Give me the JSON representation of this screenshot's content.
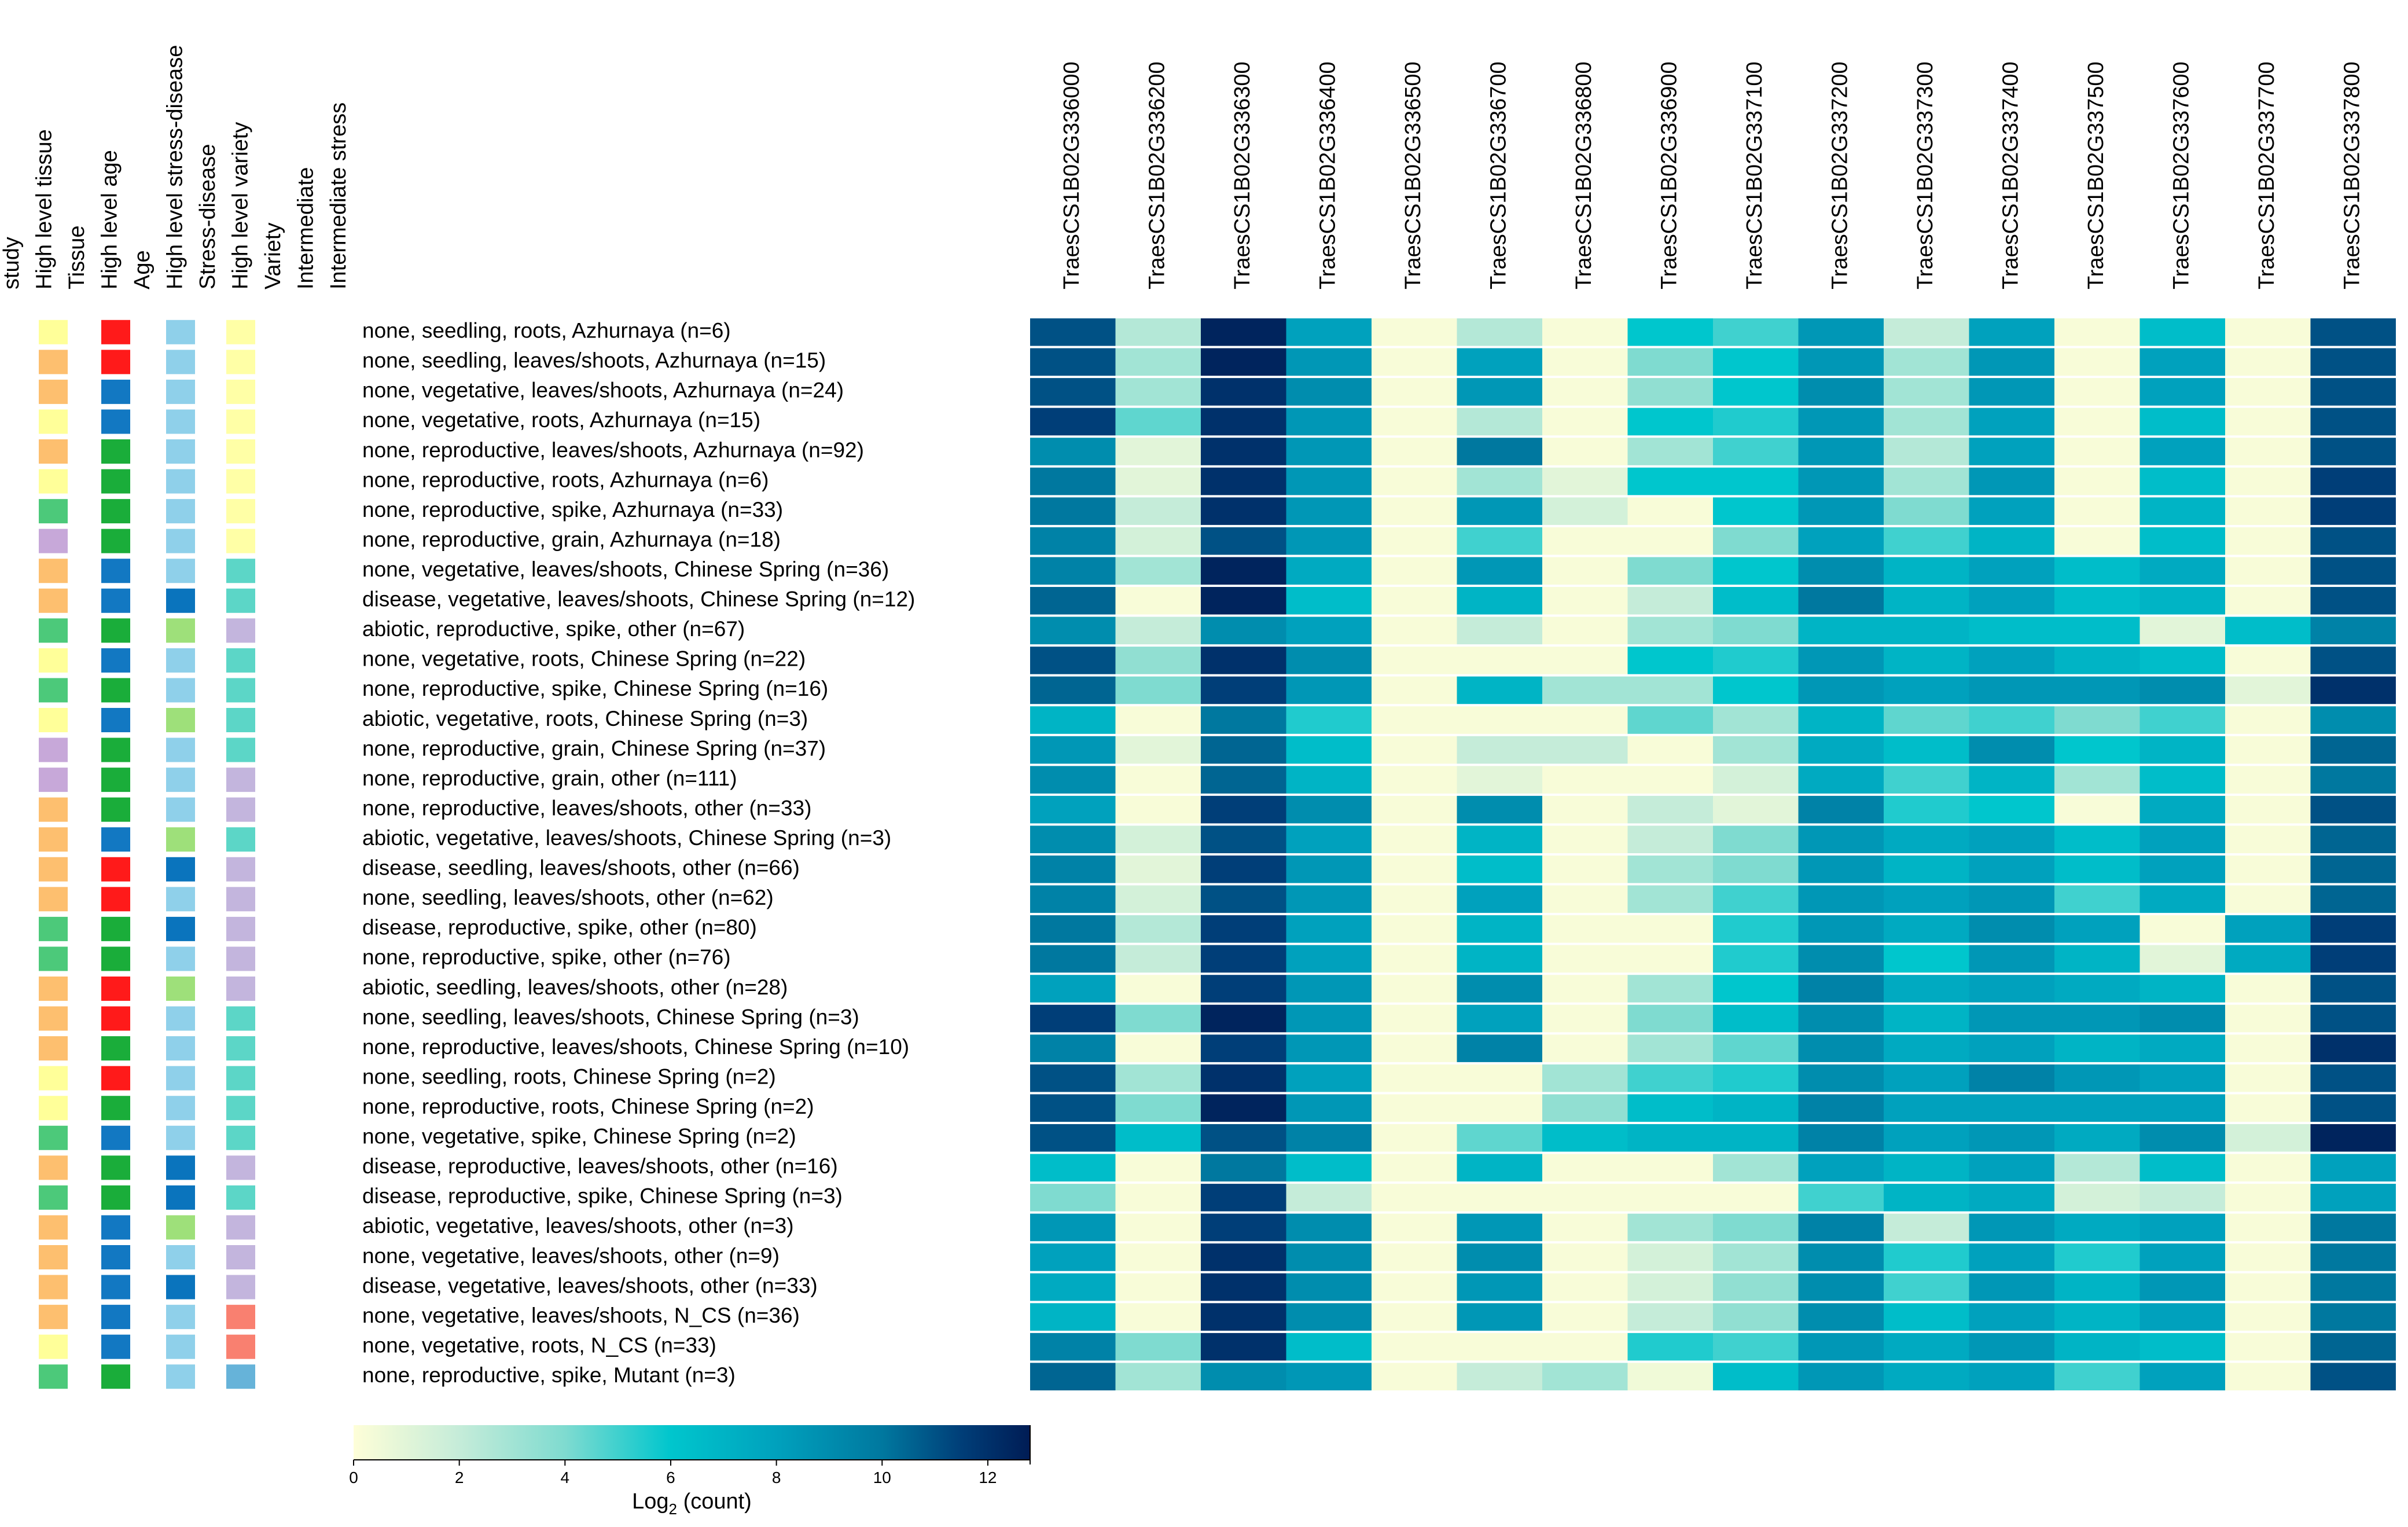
{
  "chart_data": {
    "type": "heatmap",
    "title": "",
    "annotation_headers": [
      "study",
      "High level tissue",
      "Tissue",
      "High level age",
      "Age",
      "High level stress-disease",
      "Stress-disease",
      "High level variety",
      "Variety",
      "Intermediate",
      "Intermediate stress"
    ],
    "annotation_columns": [
      "High level tissue",
      "High level age",
      "High level stress-disease",
      "High level variety"
    ],
    "annotation_palettes": {
      "High level tissue": {
        "roots": "#ffff99",
        "leaves/shoots": "#fdbf6f",
        "spike": "#4cc97a",
        "grain": "#c7a8d9"
      },
      "High level age": {
        "seedling": "#ff1a1a",
        "vegetative": "#1278c2",
        "reproductive": "#1aad3a"
      },
      "High level stress-disease": {
        "none": "#8fd0ea",
        "disease": "#0a74bd",
        "abiotic": "#9ee07a"
      },
      "High level variety": {
        "Azhurnaya": "#ffffa6",
        "Chinese Spring": "#5cd6c7",
        "other": "#c3b5dd",
        "N_CS": "#f98070",
        "Mutant": "#66b3d9"
      }
    },
    "genes": [
      "TraesCS1B02G336000",
      "TraesCS1B02G336200",
      "TraesCS1B02G336300",
      "TraesCS1B02G336400",
      "TraesCS1B02G336500",
      "TraesCS1B02G336700",
      "TraesCS1B02G336800",
      "TraesCS1B02G336900",
      "TraesCS1B02G337100",
      "TraesCS1B02G337200",
      "TraesCS1B02G337300",
      "TraesCS1B02G337400",
      "TraesCS1B02G337500",
      "TraesCS1B02G337600",
      "TraesCS1B02G337700",
      "TraesCS1B02G337800"
    ],
    "rows": [
      {
        "label": "none, seedling, roots, Azhurnaya (n=6)",
        "tissue": "roots",
        "age": "seedling",
        "stress": "none",
        "variety": "Azhurnaya",
        "values": [
          11,
          2.5,
          12.5,
          8,
          0.2,
          2.5,
          0.2,
          6,
          5,
          8.5,
          2,
          8,
          0.2,
          6.5,
          0.2,
          11
        ]
      },
      {
        "label": "none, seedling, leaves/shoots, Azhurnaya (n=15)",
        "tissue": "leaves/shoots",
        "age": "seedling",
        "stress": "none",
        "variety": "Azhurnaya",
        "values": [
          11,
          3,
          12.5,
          8.5,
          0.2,
          8,
          0.2,
          4,
          6,
          8.5,
          3,
          8.5,
          0.2,
          8,
          0.2,
          11
        ]
      },
      {
        "label": "none, vegetative, leaves/shoots, Azhurnaya (n=24)",
        "tissue": "leaves/shoots",
        "age": "vegetative",
        "stress": "none",
        "variety": "Azhurnaya",
        "values": [
          11,
          3,
          12,
          9,
          0.2,
          8.5,
          0.2,
          3.5,
          6,
          9,
          3,
          8.5,
          0.2,
          8,
          0.2,
          11
        ]
      },
      {
        "label": "none, vegetative, roots, Azhurnaya (n=15)",
        "tissue": "roots",
        "age": "vegetative",
        "stress": "none",
        "variety": "Azhurnaya",
        "values": [
          11.5,
          4.5,
          12,
          8.5,
          0.2,
          2.5,
          0.2,
          6,
          5.5,
          8.5,
          3,
          8,
          0.2,
          6.5,
          0.2,
          11
        ]
      },
      {
        "label": "none, reproductive, leaves/shoots, Azhurnaya (n=92)",
        "tissue": "leaves/shoots",
        "age": "reproductive",
        "stress": "none",
        "variety": "Azhurnaya",
        "values": [
          9,
          1,
          12,
          8.5,
          0.2,
          10,
          0.2,
          3,
          5,
          8.5,
          2.5,
          8,
          0.2,
          8,
          0.2,
          11
        ]
      },
      {
        "label": "none, reproductive, roots, Azhurnaya (n=6)",
        "tissue": "roots",
        "age": "reproductive",
        "stress": "none",
        "variety": "Azhurnaya",
        "values": [
          10,
          1,
          12,
          8.5,
          0.2,
          3,
          1,
          6,
          6,
          8.5,
          3,
          8.5,
          0.2,
          6.5,
          0.2,
          11.5
        ]
      },
      {
        "label": "none, reproductive, spike, Azhurnaya (n=33)",
        "tissue": "spike",
        "age": "reproductive",
        "stress": "none",
        "variety": "Azhurnaya",
        "values": [
          10,
          2,
          12,
          8.5,
          0.2,
          8.5,
          1.5,
          0.2,
          6,
          8.5,
          4,
          8,
          0.2,
          7,
          0.2,
          11.5
        ]
      },
      {
        "label": "none, reproductive, grain, Azhurnaya (n=18)",
        "tissue": "grain",
        "age": "reproductive",
        "stress": "none",
        "variety": "Azhurnaya",
        "values": [
          9.5,
          1.5,
          11,
          8.5,
          0.2,
          5,
          0.2,
          0.2,
          4,
          8,
          5,
          7,
          0.2,
          6.5,
          0.2,
          11
        ]
      },
      {
        "label": "none, vegetative, leaves/shoots, Chinese Spring (n=36)",
        "tissue": "leaves/shoots",
        "age": "vegetative",
        "stress": "none",
        "variety": "Chinese Spring",
        "values": [
          9.5,
          3,
          12.5,
          7.5,
          0.2,
          8.5,
          0.2,
          4,
          6,
          9,
          7,
          8,
          6.5,
          7.5,
          0.2,
          11
        ]
      },
      {
        "label": "disease, vegetative, leaves/shoots, Chinese Spring (n=12)",
        "tissue": "leaves/shoots",
        "age": "vegetative",
        "stress": "disease",
        "variety": "Chinese Spring",
        "values": [
          10.5,
          0.2,
          12.5,
          6.5,
          0.2,
          7,
          0.2,
          2,
          6.5,
          10,
          7,
          8,
          6.5,
          7,
          0.2,
          11
        ]
      },
      {
        "label": "abiotic, reproductive, spike, other (n=67)",
        "tissue": "spike",
        "age": "reproductive",
        "stress": "abiotic",
        "variety": "other",
        "values": [
          9,
          2,
          9,
          8,
          0.2,
          2,
          0.2,
          3,
          4,
          7,
          7,
          6.5,
          6.5,
          1,
          6.5,
          9.5
        ]
      },
      {
        "label": "none, vegetative, roots, Chinese Spring (n=22)",
        "tissue": "roots",
        "age": "vegetative",
        "stress": "none",
        "variety": "Chinese Spring",
        "values": [
          11,
          3.5,
          12,
          9,
          0.2,
          0.2,
          0.2,
          6,
          5.5,
          8.5,
          7,
          8,
          7,
          6.5,
          0.2,
          11
        ]
      },
      {
        "label": "none, reproductive, spike, Chinese Spring (n=16)",
        "tissue": "spike",
        "age": "reproductive",
        "stress": "none",
        "variety": "Chinese Spring",
        "values": [
          10.5,
          4,
          11.5,
          8.5,
          0.2,
          7,
          3,
          3,
          6,
          8.5,
          8,
          8.5,
          8.5,
          9,
          1,
          12
        ]
      },
      {
        "label": "abiotic, vegetative, roots, Chinese Spring (n=3)",
        "tissue": "roots",
        "age": "vegetative",
        "stress": "abiotic",
        "variety": "Chinese Spring",
        "values": [
          7,
          0.2,
          10,
          5.5,
          0.2,
          0.2,
          0.2,
          4.5,
          3,
          7,
          4.5,
          5,
          4,
          5,
          0.2,
          9
        ]
      },
      {
        "label": "none, reproductive, grain, Chinese Spring (n=37)",
        "tissue": "grain",
        "age": "reproductive",
        "stress": "none",
        "variety": "Chinese Spring",
        "values": [
          8.5,
          1,
          10.5,
          6.5,
          0.2,
          2,
          2,
          0.2,
          3,
          7.5,
          6.5,
          9,
          6,
          7,
          0.2,
          10.5
        ]
      },
      {
        "label": "none, reproductive, grain, other (n=111)",
        "tissue": "grain",
        "age": "reproductive",
        "stress": "none",
        "variety": "other",
        "values": [
          9,
          0.2,
          10.5,
          7,
          0.2,
          1,
          0.2,
          0.2,
          1.5,
          7.5,
          5,
          7,
          3,
          6.5,
          0.2,
          10
        ]
      },
      {
        "label": "none, reproductive, leaves/shoots, other (n=33)",
        "tissue": "leaves/shoots",
        "age": "reproductive",
        "stress": "none",
        "variety": "other",
        "values": [
          8,
          0.2,
          11.5,
          9,
          0.2,
          9,
          0.2,
          2,
          1,
          9.5,
          5.5,
          6,
          0.2,
          7.5,
          0.2,
          11
        ]
      },
      {
        "label": "abiotic, vegetative, leaves/shoots, Chinese Spring (n=3)",
        "tissue": "leaves/shoots",
        "age": "vegetative",
        "stress": "abiotic",
        "variety": "Chinese Spring",
        "values": [
          9,
          1.5,
          11,
          8,
          0.2,
          7,
          0.2,
          2,
          4,
          8.5,
          7.5,
          8,
          6.5,
          8,
          0.2,
          10.5
        ]
      },
      {
        "label": "disease, seedling, leaves/shoots, other (n=66)",
        "tissue": "leaves/shoots",
        "age": "seedling",
        "stress": "disease",
        "variety": "other",
        "values": [
          9.5,
          1,
          11.5,
          8.5,
          0.2,
          6.5,
          0.2,
          3,
          4,
          8.5,
          7,
          8,
          6.5,
          8,
          0.2,
          10.5
        ]
      },
      {
        "label": "none, seedling, leaves/shoots, other (n=62)",
        "tissue": "leaves/shoots",
        "age": "seedling",
        "stress": "none",
        "variety": "other",
        "values": [
          9.5,
          1.5,
          11,
          8.5,
          0.2,
          8,
          0.2,
          3,
          5,
          8.5,
          8,
          8.5,
          5,
          7.5,
          0.2,
          10.5
        ]
      },
      {
        "label": "disease, reproductive, spike, other (n=80)",
        "tissue": "spike",
        "age": "reproductive",
        "stress": "disease",
        "variety": "other",
        "values": [
          10,
          2.5,
          11.5,
          8,
          0.2,
          7,
          0.2,
          0.2,
          5.5,
          8.5,
          7.5,
          9,
          8,
          0.2,
          8,
          11.5
        ]
      },
      {
        "label": "none, reproductive, spike, other (n=76)",
        "tissue": "spike",
        "age": "reproductive",
        "stress": "none",
        "variety": "other",
        "values": [
          10,
          2,
          11.5,
          8,
          0.2,
          7,
          0.2,
          0.2,
          5.5,
          9,
          6,
          8.5,
          7,
          1,
          7.5,
          11.5
        ]
      },
      {
        "label": "abiotic, seedling, leaves/shoots, other (n=28)",
        "tissue": "leaves/shoots",
        "age": "seedling",
        "stress": "abiotic",
        "variety": "other",
        "values": [
          8,
          0.2,
          11.5,
          8.5,
          0.2,
          9,
          0.2,
          3,
          6,
          9.5,
          7.5,
          8,
          7.5,
          7,
          0.2,
          11
        ]
      },
      {
        "label": "none, seedling, leaves/shoots, Chinese Spring (n=3)",
        "tissue": "leaves/shoots",
        "age": "seedling",
        "stress": "none",
        "variety": "Chinese Spring",
        "values": [
          11.5,
          4,
          12.5,
          8.5,
          0.2,
          8,
          0.2,
          4,
          6.5,
          9,
          7,
          8.5,
          8.5,
          9,
          0.2,
          11
        ]
      },
      {
        "label": "none, reproductive, leaves/shoots, Chinese Spring (n=10)",
        "tissue": "leaves/shoots",
        "age": "reproductive",
        "stress": "none",
        "variety": "Chinese Spring",
        "values": [
          9.5,
          0.2,
          11.5,
          8.5,
          0.2,
          9.5,
          0.2,
          3,
          4.5,
          9,
          7.5,
          8,
          7,
          7.5,
          0.2,
          12
        ]
      },
      {
        "label": "none, seedling, roots, Chinese Spring (n=2)",
        "tissue": "roots",
        "age": "seedling",
        "stress": "none",
        "variety": "Chinese Spring",
        "values": [
          11,
          3,
          12,
          8,
          0.2,
          0.2,
          3,
          5,
          5.5,
          9,
          8,
          9.5,
          8.5,
          8,
          0.2,
          11
        ]
      },
      {
        "label": "none, reproductive, roots, Chinese Spring (n=2)",
        "tissue": "roots",
        "age": "reproductive",
        "stress": "none",
        "variety": "Chinese Spring",
        "values": [
          11,
          4,
          12.5,
          8.5,
          0.2,
          0.2,
          3.5,
          6.5,
          7,
          9.5,
          8,
          8,
          8,
          8,
          0.2,
          11
        ]
      },
      {
        "label": "none, vegetative, spike, Chinese Spring (n=2)",
        "tissue": "spike",
        "age": "vegetative",
        "stress": "none",
        "variety": "Chinese Spring",
        "values": [
          11,
          6.5,
          11,
          9.5,
          0.2,
          4.5,
          6.5,
          7,
          7,
          9.5,
          8,
          8.5,
          7.5,
          9,
          1.5,
          12.5
        ]
      },
      {
        "label": "disease, reproductive, leaves/shoots, other (n=16)",
        "tissue": "leaves/shoots",
        "age": "reproductive",
        "stress": "disease",
        "variety": "other",
        "values": [
          6.5,
          0.2,
          10,
          6.5,
          0.2,
          7,
          0.2,
          0.2,
          3,
          8,
          7,
          8,
          2.5,
          6.5,
          0.2,
          8
        ]
      },
      {
        "label": "disease, reproductive, spike, Chinese Spring (n=3)",
        "tissue": "spike",
        "age": "reproductive",
        "stress": "disease",
        "variety": "Chinese Spring",
        "values": [
          4,
          0.2,
          11.5,
          2,
          0.2,
          0.2,
          0.2,
          0.2,
          0.2,
          5,
          7,
          7.5,
          1.5,
          2,
          0.2,
          8
        ]
      },
      {
        "label": "abiotic, vegetative, leaves/shoots, other (n=3)",
        "tissue": "leaves/shoots",
        "age": "vegetative",
        "stress": "abiotic",
        "variety": "other",
        "values": [
          8.5,
          0.2,
          11.5,
          9,
          0.2,
          8.5,
          0.2,
          3,
          4,
          9.5,
          2,
          8.5,
          7.5,
          8,
          0.2,
          10
        ]
      },
      {
        "label": "none, vegetative, leaves/shoots, other (n=9)",
        "tissue": "leaves/shoots",
        "age": "vegetative",
        "stress": "none",
        "variety": "other",
        "values": [
          8,
          0.2,
          12,
          9,
          0.2,
          9,
          0.2,
          1.5,
          3,
          9,
          5.5,
          8,
          5.5,
          8,
          0.2,
          10
        ]
      },
      {
        "label": "disease, vegetative, leaves/shoots, other (n=33)",
        "tissue": "leaves/shoots",
        "age": "vegetative",
        "stress": "disease",
        "variety": "other",
        "values": [
          7.5,
          0.2,
          12,
          9,
          0.2,
          8.5,
          0.2,
          1.5,
          3.5,
          9,
          5,
          8.5,
          7,
          8.5,
          0.2,
          10
        ]
      },
      {
        "label": "none, vegetative, leaves/shoots, N_CS (n=36)",
        "tissue": "leaves/shoots",
        "age": "vegetative",
        "stress": "none",
        "variety": "N_CS",
        "values": [
          7,
          0.2,
          12,
          9,
          0.2,
          8.5,
          0.2,
          2,
          3.5,
          9,
          6.5,
          8,
          7,
          8,
          0.2,
          10
        ]
      },
      {
        "label": "none, vegetative, roots, N_CS (n=33)",
        "tissue": "roots",
        "age": "vegetative",
        "stress": "none",
        "variety": "N_CS",
        "values": [
          9.5,
          4,
          12,
          6.5,
          0.2,
          0.2,
          0.2,
          5.5,
          5,
          8.5,
          7.5,
          8.5,
          7,
          6.5,
          0.2,
          10.5
        ]
      },
      {
        "label": "none, reproductive, spike, Mutant (n=3)",
        "tissue": "spike",
        "age": "reproductive",
        "stress": "none",
        "variety": "Mutant",
        "values": [
          10.5,
          3,
          9,
          8.5,
          0.2,
          2,
          3,
          0.5,
          6.5,
          8.5,
          7.5,
          8,
          5,
          8,
          0.2,
          11
        ]
      }
    ],
    "colorbar": {
      "label_prefix": "Log",
      "label_sub": "2",
      "label_suffix": " (count)",
      "ticks": [
        0,
        2,
        4,
        6,
        8,
        10,
        12
      ],
      "range": [
        0,
        12.8
      ]
    },
    "colors": {
      "stops": [
        "#fefed8",
        "#c5ecd9",
        "#7fdbd0",
        "#00c6cd",
        "#00a1bd",
        "#00789f",
        "#003e78",
        "#001c55"
      ],
      "stop_values": [
        0,
        2,
        4,
        6,
        8,
        10,
        11.5,
        12.8
      ],
      "separator": "#ffffff",
      "text": "#000000"
    }
  }
}
